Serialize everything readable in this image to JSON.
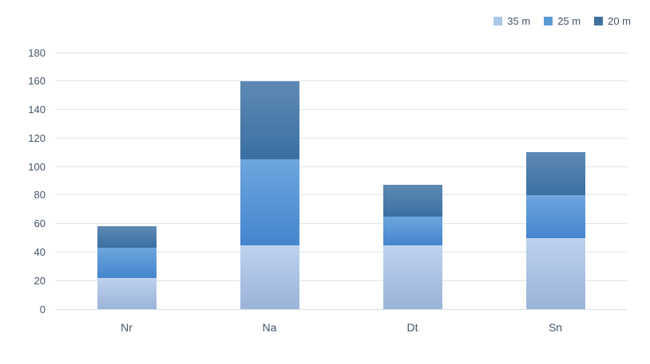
{
  "chart_data": {
    "type": "bar",
    "stacked": true,
    "title": "",
    "xlabel": "",
    "ylabel": "",
    "categories": [
      "Nr",
      "Na",
      "Dt",
      "Sn"
    ],
    "series": [
      {
        "name": "35 m",
        "values": [
          22,
          45,
          45,
          50
        ],
        "color": "#a9c7e8",
        "gradient_top": "#bdd2ee",
        "gradient_bottom": "#9cb3d9"
      },
      {
        "name": "25 m",
        "values": [
          21,
          60,
          20,
          30
        ],
        "color": "#5b9bd5",
        "gradient_top": "#6ea6de",
        "gradient_bottom": "#4485cd"
      },
      {
        "name": "20 m",
        "values": [
          15,
          55,
          22,
          30
        ],
        "color": "#41719c",
        "gradient_top": "#5f89b4",
        "gradient_bottom": "#3a6fa2"
      }
    ],
    "stack_totals": [
      58,
      160,
      87,
      110
    ],
    "ylim": [
      0,
      180
    ],
    "ytick_step": 20,
    "yticks": [
      0,
      20,
      40,
      60,
      80,
      100,
      120,
      140,
      160,
      180
    ],
    "grid": true,
    "legend_position": "top-right",
    "colors": {
      "axis_text": "#44546a",
      "gridline": "#dde4ee",
      "background": "#ffffff"
    }
  }
}
